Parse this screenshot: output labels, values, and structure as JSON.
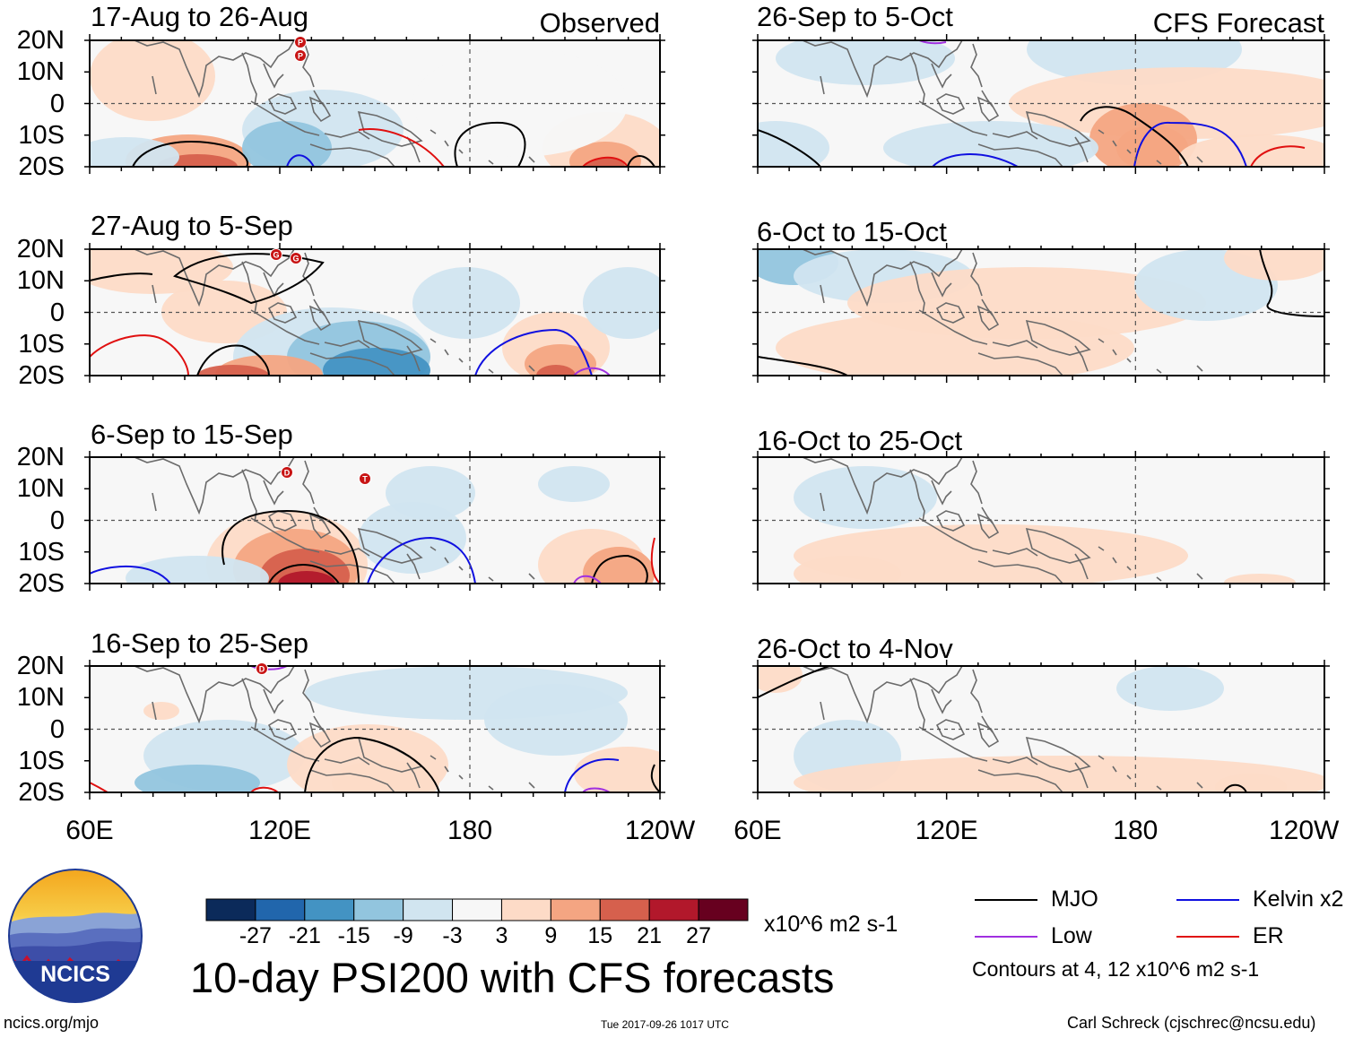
{
  "header": {
    "left_label": "Observed",
    "right_label": "CFS Forecast"
  },
  "panels": {
    "observed": [
      {
        "title": "17-Aug to 26-Aug"
      },
      {
        "title": "27-Aug to 5-Sep"
      },
      {
        "title": "6-Sep to 15-Sep"
      },
      {
        "title": "16-Sep to 25-Sep"
      }
    ],
    "forecast": [
      {
        "title": "26-Sep to 5-Oct"
      },
      {
        "title": "6-Oct to 15-Oct"
      },
      {
        "title": "16-Oct to 25-Oct"
      },
      {
        "title": "26-Oct to 4-Nov"
      }
    ]
  },
  "axes": {
    "lat_labels": [
      "20N",
      "10N",
      "0",
      "10S",
      "20S"
    ],
    "lon_labels": [
      "60E",
      "120E",
      "180",
      "120W"
    ]
  },
  "colorbar": {
    "colors": [
      "#0b2a5a",
      "#2166ac",
      "#4393c3",
      "#92c5de",
      "#d1e5f0",
      "#f7f7f7",
      "#fddbc7",
      "#f4a582",
      "#d6604d",
      "#b2182b",
      "#67001f"
    ],
    "ticks": [
      "-27",
      "-21",
      "-15",
      "-9",
      "-3",
      "3",
      "9",
      "15",
      "21",
      "27"
    ],
    "units": "x10^6 m2 s-1"
  },
  "legend": {
    "items": [
      {
        "label": "MJO",
        "color": "#000000"
      },
      {
        "label": "Kelvin x2",
        "color": "#1010e0"
      },
      {
        "label": "Low",
        "color": "#a030e0"
      },
      {
        "label": "ER",
        "color": "#e01010"
      }
    ],
    "contours_note": "Contours at 4, 12 x10^6 m2 s-1"
  },
  "logo": {
    "text": "NCICS"
  },
  "main_title": "10-day PSI200 with CFS forecasts",
  "footer": {
    "url": "ncics.org/mjo",
    "timestamp": "Tue 2017-09-26 1017 UTC",
    "credit": "Carl Schreck (cjschrec@ncsu.edu)"
  },
  "storm_markers": [
    "P",
    "G",
    "D",
    "T"
  ]
}
